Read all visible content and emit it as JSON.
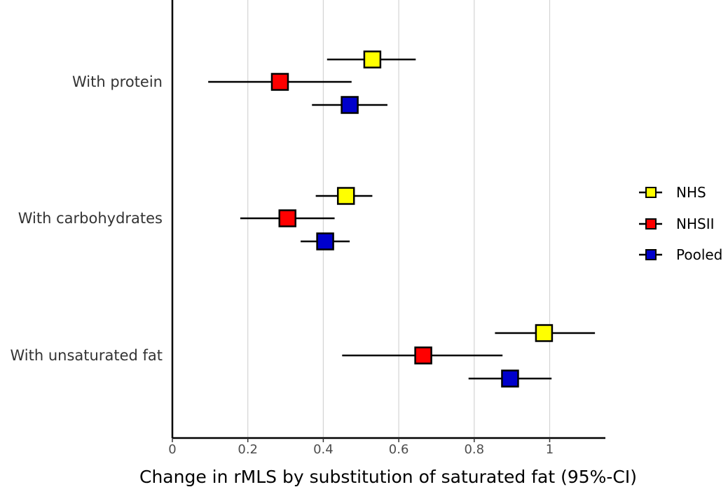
{
  "chart_data": {
    "type": "forest",
    "title": "",
    "xlabel": "Change in rMLS by substitution of saturated fat (95%-CI)",
    "ylabel": "",
    "xlim": [
      0,
      1.15
    ],
    "x_ticks": [
      "0",
      "0.2",
      "0.4",
      "0.6",
      "0.8",
      "1"
    ],
    "grid": "vertical",
    "legend_position": "right",
    "categories": [
      "With protein",
      "With carbohydrates",
      "With unsaturated fat"
    ],
    "series": [
      {
        "name": "NHS",
        "color": "#ffff00",
        "estimates": [
          0.53,
          0.46,
          0.985
        ],
        "ci_low": [
          0.41,
          0.38,
          0.855
        ],
        "ci_high": [
          0.645,
          0.53,
          1.12
        ]
      },
      {
        "name": "NHSII",
        "color": "#ff0000",
        "estimates": [
          0.285,
          0.305,
          0.665
        ],
        "ci_low": [
          0.095,
          0.18,
          0.45
        ],
        "ci_high": [
          0.475,
          0.43,
          0.875
        ]
      },
      {
        "name": "Pooled",
        "color": "#0000cc",
        "estimates": [
          0.47,
          0.405,
          0.895
        ],
        "ci_low": [
          0.37,
          0.34,
          0.785
        ],
        "ci_high": [
          0.57,
          0.47,
          1.005
        ]
      }
    ]
  }
}
